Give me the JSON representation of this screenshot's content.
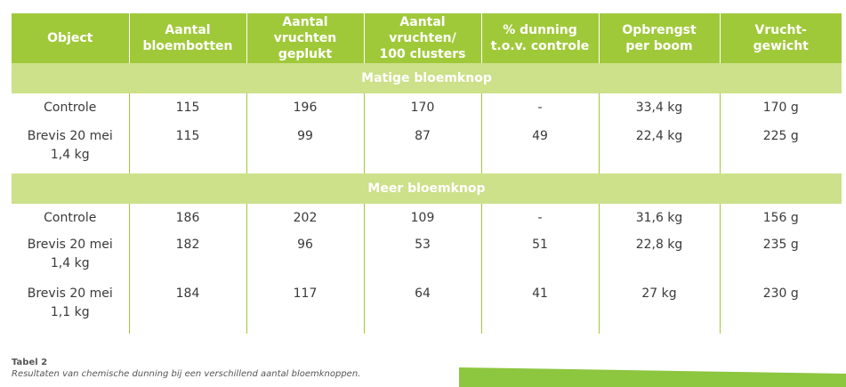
{
  "headers": [
    "Object",
    "Aantal\nbloembotten",
    "Aantal vruchten\ngeplukt",
    "Aantal vruchten/\n100 clusters",
    "% dunning\nt.o.v. controle",
    "Opbrengst\nper boom",
    "Vrucht-\ngewicht"
  ],
  "groups": [
    {
      "title": "Matige bloemknop",
      "rows": [
        [
          "Controle",
          "115",
          "196",
          "170",
          "-",
          "33,4 kg",
          "170 g"
        ],
        [
          "Brevis 20 mei\n1,4 kg",
          "115",
          "99",
          "87",
          "49",
          "22,4 kg",
          "225 g"
        ]
      ]
    },
    {
      "title": "Meer bloemknop",
      "rows": [
        [
          "Controle",
          "186",
          "202",
          "109",
          "-",
          "31,6 kg",
          "156 g"
        ],
        [
          "Brevis 20 mei\n1,4 kg",
          "182",
          "96",
          "53",
          "51",
          "22,8 kg",
          "235 g"
        ],
        [
          "Brevis 20 mei\n1,1 kg",
          "184",
          "117",
          "64",
          "41",
          "27 kg",
          "230 g"
        ]
      ]
    }
  ],
  "caption": {
    "label": "Tabel 2",
    "text": "Resultaten van chemische dunning bij een verschillend aantal bloemknoppen."
  },
  "colors": {
    "header_bg": "#a0c93a",
    "group_bg": "#cde08a",
    "accent": "#8dc63f"
  }
}
